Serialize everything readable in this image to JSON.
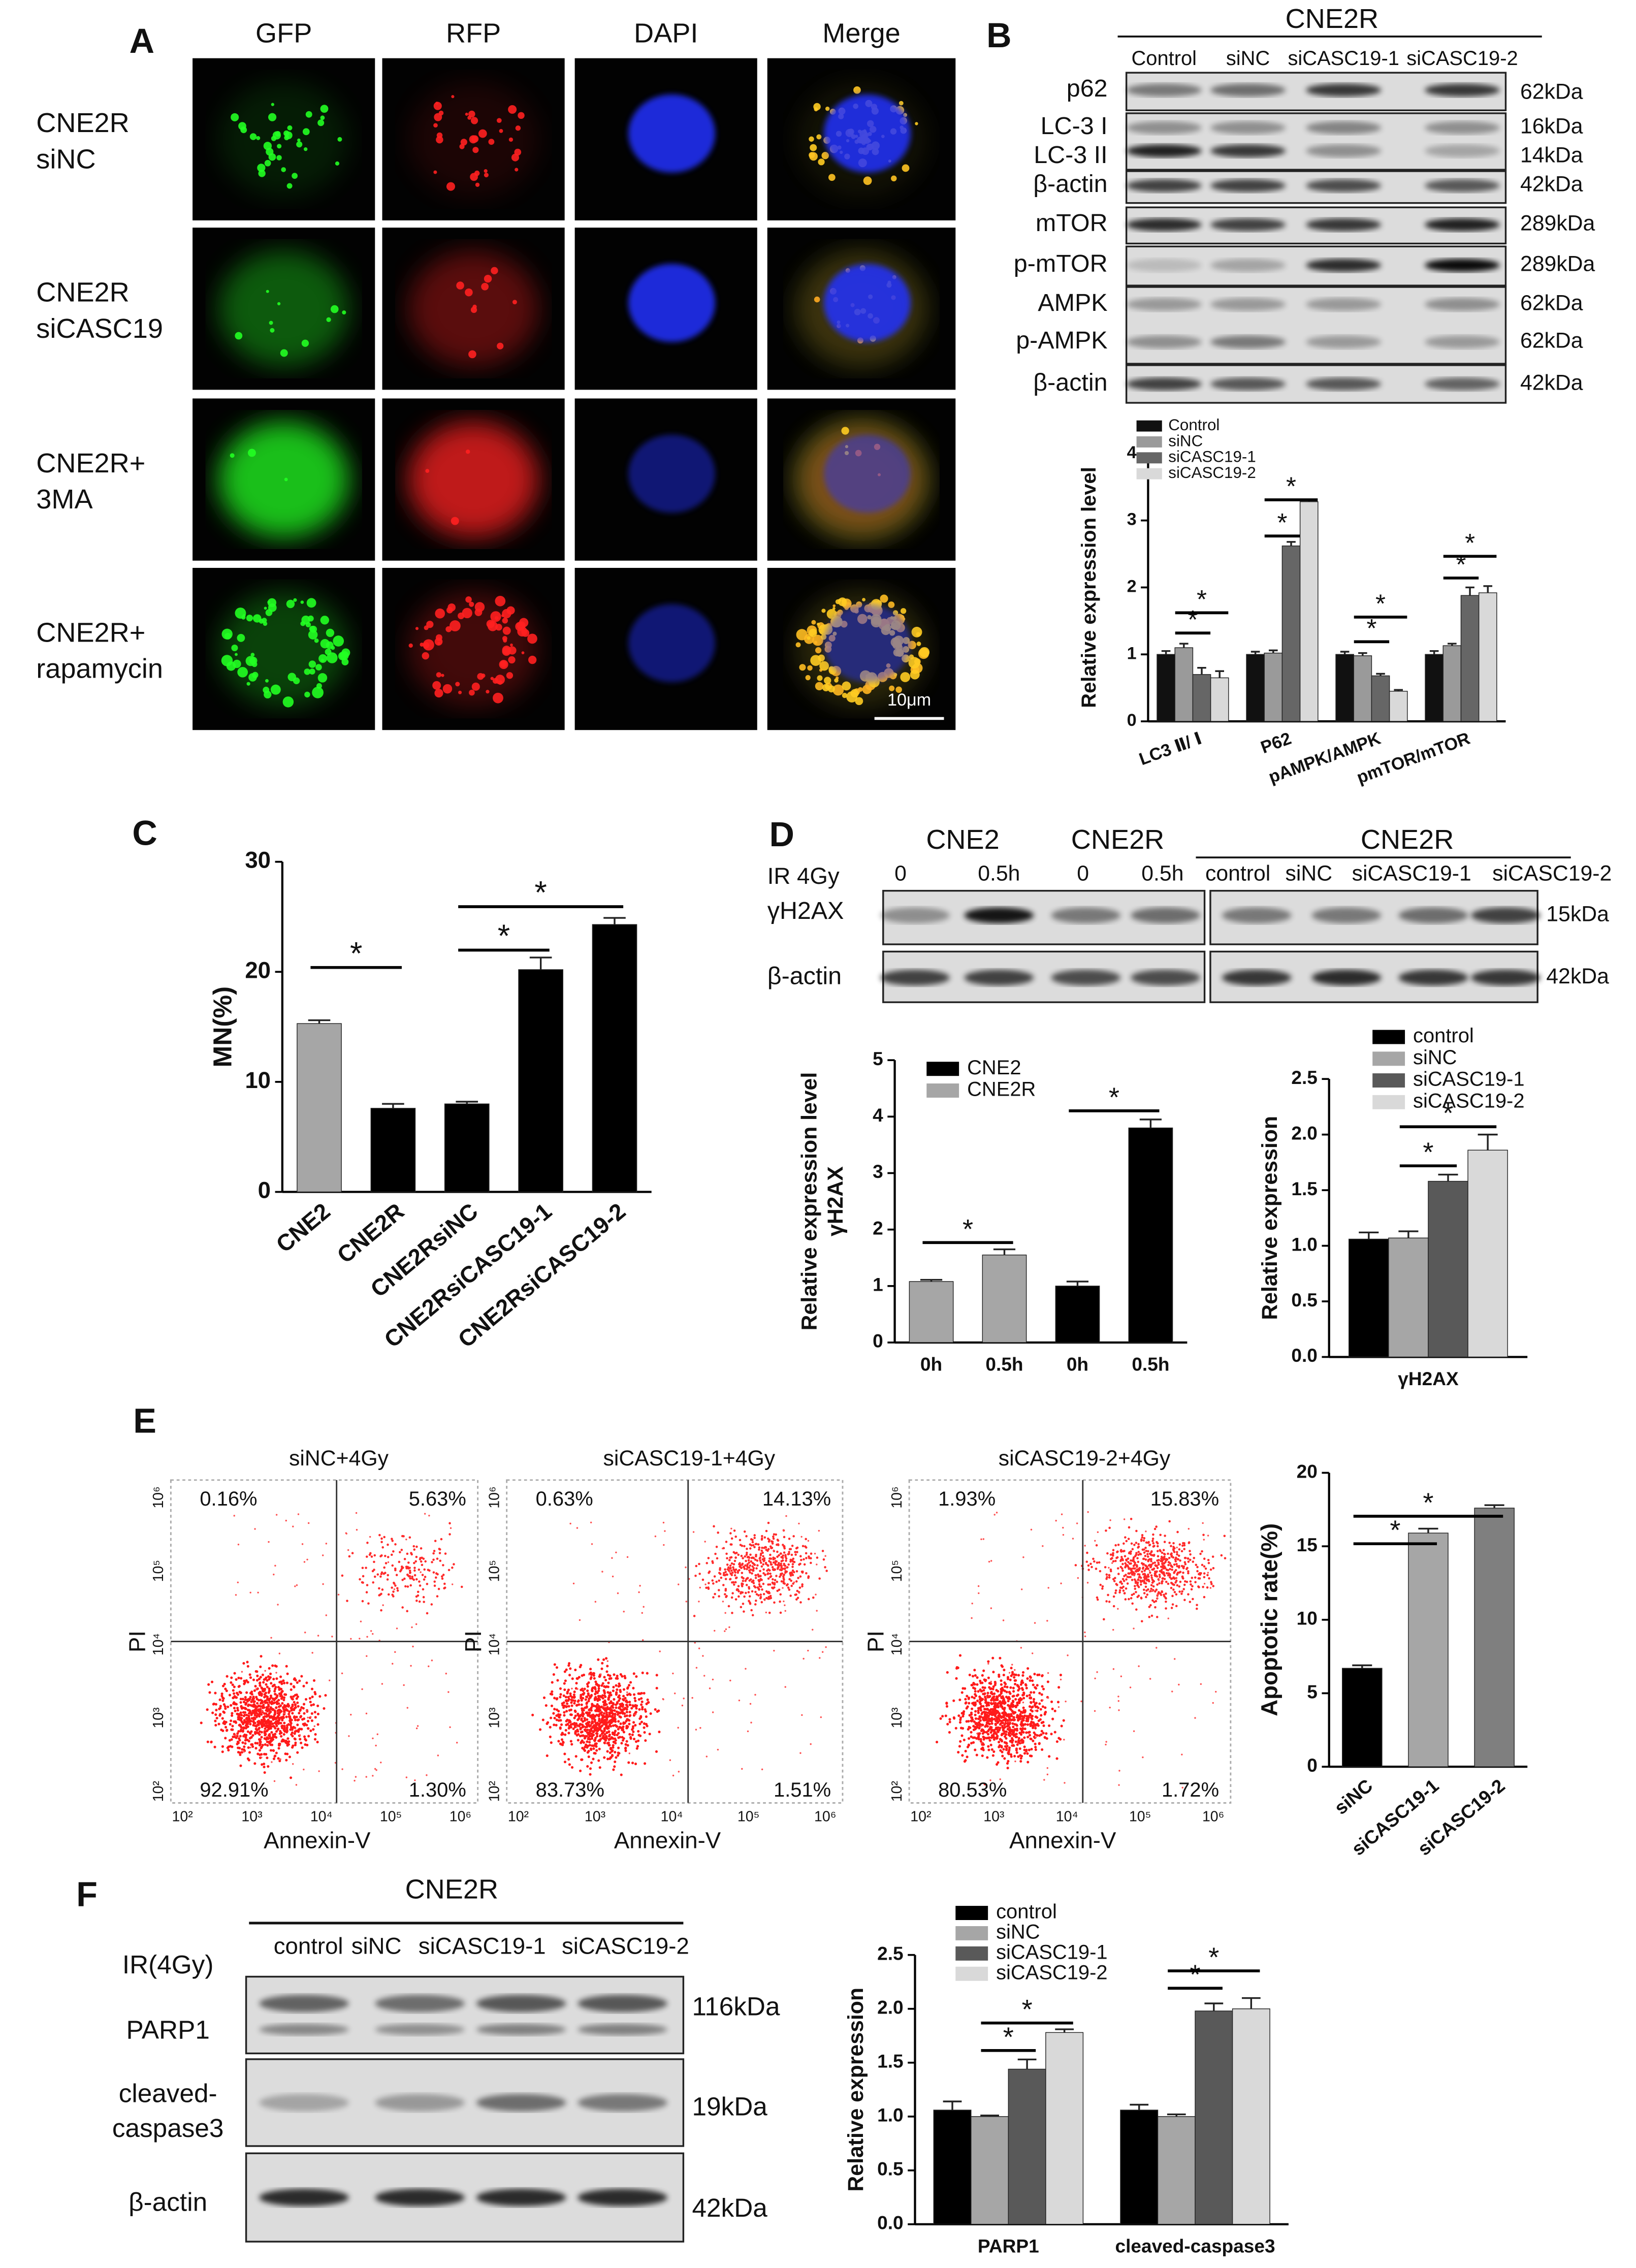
{
  "panels": {
    "A": {
      "label": "A",
      "columns": [
        "GFP",
        "RFP",
        "DAPI",
        "Merge"
      ],
      "rows": [
        [
          "CNE2R",
          "siNC"
        ],
        [
          "CNE2R",
          "siCASC19"
        ],
        [
          "CNE2R+",
          "3MA"
        ],
        [
          "CNE2R+",
          "rapamycin"
        ]
      ],
      "scale_bar": "10μm"
    },
    "B": {
      "label": "B",
      "title": "CNE2R",
      "lanes": [
        "Control",
        "siNC",
        "siCASC19-1",
        "siCASC19-2"
      ],
      "bands": [
        {
          "name": "p62",
          "size": "62kDa"
        },
        {
          "name": "LC-3 I",
          "size": "16kDa"
        },
        {
          "name": "LC-3 II",
          "size": "14kDa"
        },
        {
          "name": "β-actin",
          "size": "42kDa"
        },
        {
          "name": "mTOR",
          "size": "289kDa"
        },
        {
          "name": "p-mTOR",
          "size": "289kDa"
        },
        {
          "name": "AMPK",
          "size": "62kDa"
        },
        {
          "name": "p-AMPK",
          "size": "62kDa"
        },
        {
          "name": "β-actin",
          "size": "42kDa"
        }
      ]
    },
    "C": {
      "label": "C"
    },
    "D": {
      "label": "D",
      "groups": [
        "CNE2",
        "CNE2R",
        "CNE2R"
      ],
      "treatment": "IR 4Gy",
      "lanes": [
        "0",
        "0.5h",
        "0",
        "0.5h",
        "control",
        "siNC",
        "siCASC19-1",
        "siCASC19-2"
      ],
      "bands": [
        {
          "name": "γH2AX",
          "size": "15kDa"
        },
        {
          "name": "β-actin",
          "size": "42kDa"
        }
      ]
    },
    "E": {
      "label": "E",
      "x_label": "Annexin-V",
      "y_label": "PI",
      "ticks": [
        "10²",
        "10³",
        "10⁴",
        "10⁵",
        "10⁶"
      ],
      "plots": [
        {
          "title": "siNC+4Gy",
          "quadrants": [
            "0.16%",
            "5.63%",
            "92.91%",
            "1.30%"
          ]
        },
        {
          "title": "siCASC19-1+4Gy",
          "quadrants": [
            "0.63%",
            "14.13%",
            "83.73%",
            "1.51%"
          ]
        },
        {
          "title": "siCASC19-2+4Gy",
          "quadrants": [
            "1.93%",
            "15.83%",
            "80.53%",
            "1.72%"
          ]
        }
      ]
    },
    "F": {
      "label": "F",
      "title": "CNE2R",
      "treatment": "IR(4Gy)",
      "lanes": [
        "control",
        "siNC",
        "siCASC19-1",
        "siCASC19-2"
      ],
      "bands": [
        {
          "name": [
            "PARP1"
          ],
          "size": "116kDa"
        },
        {
          "name": [
            "cleaved-",
            "caspase3"
          ],
          "size": "19kDa"
        },
        {
          "name": [
            "β-actin"
          ],
          "size": "42kDa"
        }
      ]
    }
  },
  "chart_data": [
    {
      "type": "bar",
      "y_label": [
        "Relative expression level"
      ],
      "categories": [
        "LC3 Ⅱ/ Ⅰ",
        "P62",
        "pAMPK/AMPK",
        "pmTOR/mTOR"
      ],
      "series": [
        {
          "name": "Control",
          "color": "#111111",
          "values": [
            1.0,
            1.0,
            1.0,
            1.0
          ],
          "errors": [
            0.05,
            0.04,
            0.04,
            0.05
          ]
        },
        {
          "name": "siNC",
          "color": "#9a9a9a",
          "values": [
            1.1,
            1.02,
            0.98,
            1.13
          ],
          "errors": [
            0.06,
            0.04,
            0.04,
            0.03
          ]
        },
        {
          "name": "siCASC19-1",
          "color": "#666666",
          "values": [
            0.7,
            2.62,
            0.68,
            1.88
          ],
          "errors": [
            0.1,
            0.06,
            0.03,
            0.12
          ]
        },
        {
          "name": "siCASC19-2",
          "color": "#d9d9d9",
          "values": [
            0.65,
            3.28,
            0.45,
            1.92
          ],
          "errors": [
            0.1,
            0.03,
            0.02,
            0.1
          ]
        }
      ],
      "ylim": [
        0,
        4
      ],
      "yticks": [
        0,
        1,
        2,
        3,
        4
      ],
      "significance": [
        "*",
        "*",
        "*",
        "*",
        "*",
        "*",
        "*",
        "*"
      ]
    },
    {
      "type": "bar",
      "y_label": [
        "MN(%)"
      ],
      "categories": [
        "CNE2",
        "CNE2R",
        "CNE2RsiNC",
        "CNE2RsiCASC19-1",
        "CNE2RsiCASC19-2"
      ],
      "values": [
        15.3,
        7.6,
        8.0,
        20.2,
        24.3
      ],
      "errors": [
        0.3,
        0.4,
        0.2,
        1.1,
        0.6
      ],
      "colors": [
        "#a6a6a6",
        "#000000",
        "#000000",
        "#000000",
        "#000000"
      ],
      "ylim": [
        0,
        30
      ],
      "yticks": [
        0,
        10,
        20,
        30
      ],
      "significance": [
        "*",
        "*",
        "*"
      ]
    },
    {
      "type": "bar",
      "y_label": [
        "Relative expression level",
        "γH2AX"
      ],
      "categories": [
        "0h",
        "0.5h",
        "0h",
        "0.5h"
      ],
      "values": [
        1.08,
        1.55,
        1.0,
        3.8
      ],
      "errors": [
        0.03,
        0.1,
        0.08,
        0.15
      ],
      "colors": [
        "#a6a6a6",
        "#a6a6a6",
        "#000000",
        "#000000"
      ],
      "legend": [
        {
          "name": "CNE2",
          "color": "#000000"
        },
        {
          "name": "CNE2R",
          "color": "#a6a6a6"
        }
      ],
      "ylim": [
        0,
        5
      ],
      "yticks": [
        0,
        1,
        2,
        3,
        4,
        5
      ],
      "significance": [
        "*",
        "*"
      ]
    },
    {
      "type": "bar",
      "y_label": [
        "Relative expression"
      ],
      "categories": [
        "γH2AX"
      ],
      "series": [
        {
          "name": "control",
          "color": "#000000",
          "values": [
            1.06
          ],
          "errors": [
            0.06
          ]
        },
        {
          "name": "siNC",
          "color": "#a6a6a6",
          "values": [
            1.07
          ],
          "errors": [
            0.06
          ]
        },
        {
          "name": "siCASC19-1",
          "color": "#595959",
          "values": [
            1.58
          ],
          "errors": [
            0.06
          ]
        },
        {
          "name": "siCASC19-2",
          "color": "#d9d9d9",
          "values": [
            1.86
          ],
          "errors": [
            0.14
          ]
        }
      ],
      "ylim": [
        0,
        2.5
      ],
      "yticks": [
        {
          "value": 0,
          "label": "0.0"
        },
        {
          "value": 0.5,
          "label": "0.5"
        },
        {
          "value": 1,
          "label": "1.0"
        },
        {
          "value": 1.5,
          "label": "1.5"
        },
        {
          "value": 2,
          "label": "2.0"
        },
        {
          "value": 2.5,
          "label": "2.5"
        }
      ],
      "significance": [
        "*",
        "*"
      ]
    },
    {
      "type": "bar",
      "y_label": [
        "Apoptotic rate(%)"
      ],
      "categories": [
        "siNC",
        "siCASC19-1",
        "siCASC19-2"
      ],
      "values": [
        6.7,
        15.9,
        17.6
      ],
      "errors": [
        0.2,
        0.3,
        0.2
      ],
      "colors": [
        "#000000",
        "#a6a6a6",
        "#7f7f7f"
      ],
      "ylim": [
        0,
        20
      ],
      "yticks": [
        0,
        5,
        10,
        15,
        20
      ],
      "significance": [
        "*",
        "*"
      ]
    },
    {
      "type": "bar",
      "y_label": [
        "Relative expression"
      ],
      "categories": [
        "PARP1",
        "cleaved-caspase3"
      ],
      "series": [
        {
          "name": "control",
          "color": "#000000",
          "values": [
            1.06,
            1.06
          ],
          "errors": [
            0.08,
            0.05
          ]
        },
        {
          "name": "siNC",
          "color": "#a6a6a6",
          "values": [
            1.0,
            1.0
          ],
          "errors": [
            0.01,
            0.02
          ]
        },
        {
          "name": "siCASC19-1",
          "color": "#595959",
          "values": [
            1.44,
            1.98
          ],
          "errors": [
            0.09,
            0.07
          ]
        },
        {
          "name": "siCASC19-2",
          "color": "#d9d9d9",
          "values": [
            1.78,
            2.0
          ],
          "errors": [
            0.03,
            0.1
          ]
        }
      ],
      "ylim": [
        0,
        2.5
      ],
      "yticks": [
        {
          "value": 0,
          "label": "0.0"
        },
        {
          "value": 0.5,
          "label": "0.5"
        },
        {
          "value": 1,
          "label": "1.0"
        },
        {
          "value": 1.5,
          "label": "1.5"
        },
        {
          "value": 2,
          "label": "2.0"
        },
        {
          "value": 2.5,
          "label": "2.5"
        }
      ],
      "significance": [
        "*",
        "*",
        "*",
        "*"
      ]
    }
  ]
}
